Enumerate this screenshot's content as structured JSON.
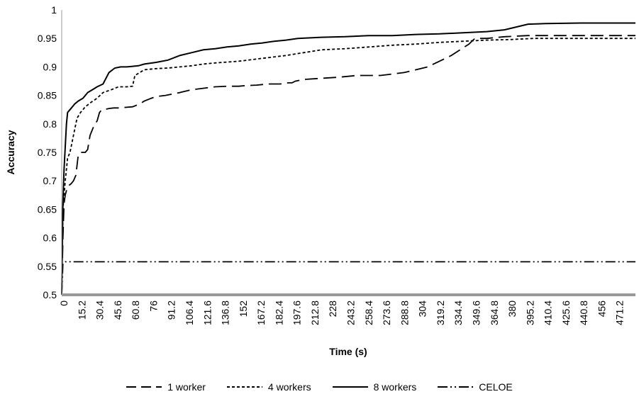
{
  "chart_data": {
    "type": "line",
    "title": "",
    "xlabel": "Time (s)",
    "ylabel": "Accuracy",
    "xlim": [
      0,
      486
    ],
    "ylim": [
      0.5,
      1
    ],
    "grid": false,
    "legend_position": "bottom",
    "yticks": [
      "0.5",
      "0.55",
      "0.6",
      "0.65",
      "0.7",
      "0.75",
      "0.8",
      "0.85",
      "0.9",
      "0.95",
      "1"
    ],
    "xticks": [
      "0",
      "15.2",
      "30.4",
      "45.6",
      "60.8",
      "76",
      "91.2",
      "106.4",
      "121.6",
      "136.8",
      "152",
      "167.2",
      "182.4",
      "197.6",
      "212.8",
      "228",
      "243.2",
      "258.4",
      "273.6",
      "288.8",
      "304",
      "319.2",
      "334.4",
      "349.6",
      "364.8",
      "380",
      "395.2",
      "410.4",
      "425.6",
      "440.8",
      "456",
      "471.2"
    ],
    "series": [
      {
        "name": "1 worker",
        "dash": "18,8",
        "x": [
          0,
          1,
          2,
          3,
          5,
          8,
          10,
          12,
          14,
          16,
          18,
          20,
          22,
          24,
          26,
          28,
          30,
          32,
          34,
          36,
          40,
          44,
          48,
          60,
          66,
          70,
          76,
          80,
          88,
          100,
          110,
          118,
          130,
          140,
          150,
          155,
          165,
          175,
          185,
          192,
          195,
          198,
          205,
          220,
          235,
          250,
          270,
          290,
          310,
          330,
          345,
          350,
          360,
          375,
          395,
          486
        ],
        "y": [
          0.5,
          0.6,
          0.66,
          0.675,
          0.69,
          0.695,
          0.7,
          0.71,
          0.745,
          0.75,
          0.75,
          0.75,
          0.755,
          0.78,
          0.79,
          0.8,
          0.805,
          0.82,
          0.825,
          0.825,
          0.827,
          0.828,
          0.828,
          0.83,
          0.835,
          0.84,
          0.845,
          0.848,
          0.85,
          0.855,
          0.86,
          0.862,
          0.865,
          0.866,
          0.866,
          0.867,
          0.868,
          0.87,
          0.87,
          0.872,
          0.872,
          0.875,
          0.878,
          0.88,
          0.882,
          0.885,
          0.885,
          0.89,
          0.9,
          0.92,
          0.94,
          0.95,
          0.95,
          0.953,
          0.955,
          0.955
        ]
      },
      {
        "name": "4 workers",
        "dash": "4,3",
        "x": [
          0,
          1,
          3,
          5,
          7,
          10,
          13,
          16,
          20,
          25,
          30,
          35,
          42,
          48,
          55,
          60,
          62,
          70,
          80,
          90,
          100,
          110,
          120,
          130,
          150,
          170,
          190,
          205,
          220,
          240,
          260,
          280,
          300,
          320,
          340,
          360,
          380,
          400,
          420,
          440,
          460,
          486
        ],
        "y": [
          0.5,
          0.65,
          0.7,
          0.74,
          0.75,
          0.78,
          0.81,
          0.82,
          0.83,
          0.838,
          0.845,
          0.855,
          0.86,
          0.865,
          0.865,
          0.866,
          0.885,
          0.895,
          0.897,
          0.898,
          0.9,
          0.902,
          0.905,
          0.907,
          0.91,
          0.915,
          0.92,
          0.925,
          0.93,
          0.932,
          0.935,
          0.938,
          0.94,
          0.943,
          0.945,
          0.947,
          0.948,
          0.95,
          0.95,
          0.95,
          0.95,
          0.95
        ]
      },
      {
        "name": "8 workers",
        "dash": "",
        "x": [
          0,
          1,
          2,
          3,
          4,
          5,
          7,
          9,
          11,
          14,
          18,
          22,
          26,
          30,
          35,
          40,
          45,
          50,
          55,
          60,
          65,
          70,
          80,
          90,
          100,
          110,
          120,
          130,
          140,
          150,
          160,
          170,
          180,
          190,
          200,
          220,
          240,
          260,
          280,
          300,
          320,
          340,
          360,
          375,
          385,
          395,
          410,
          440,
          470,
          486
        ],
        "y": [
          0.5,
          0.66,
          0.72,
          0.76,
          0.8,
          0.82,
          0.825,
          0.83,
          0.835,
          0.84,
          0.845,
          0.855,
          0.86,
          0.865,
          0.87,
          0.89,
          0.898,
          0.9,
          0.9,
          0.901,
          0.902,
          0.905,
          0.908,
          0.912,
          0.92,
          0.925,
          0.93,
          0.932,
          0.935,
          0.937,
          0.94,
          0.942,
          0.945,
          0.947,
          0.95,
          0.952,
          0.953,
          0.955,
          0.955,
          0.957,
          0.958,
          0.96,
          0.962,
          0.965,
          0.97,
          0.975,
          0.976,
          0.977,
          0.977,
          0.977
        ]
      },
      {
        "name": "CELOE",
        "dash": "14,4,2,4,2,4",
        "x": [
          0,
          1,
          3,
          486
        ],
        "y": [
          0.5,
          0.555,
          0.558,
          0.558
        ]
      }
    ]
  }
}
